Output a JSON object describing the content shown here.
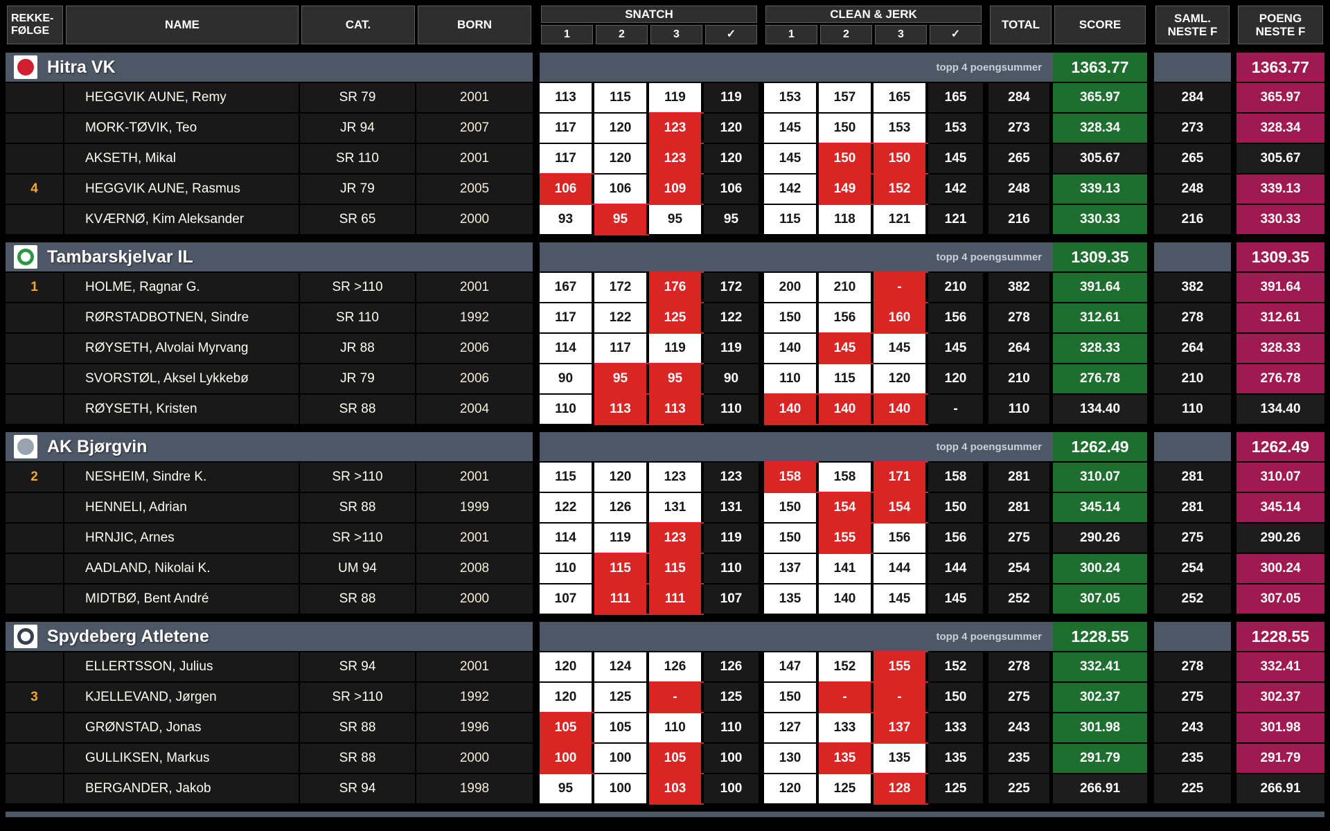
{
  "header": {
    "rekke_line1": "REKKE-",
    "rekke_line2": "FØLGE",
    "name": "NAME",
    "cat": "CAT.",
    "born": "BORN",
    "snatch": "SNATCH",
    "clean_jerk": "CLEAN & JERK",
    "attempts": [
      "1",
      "2",
      "3",
      "✓"
    ],
    "total": "TOTAL",
    "score": "SCORE",
    "saml_line1": "SAML.",
    "saml_line2": "NESTE F",
    "poeng_line1": "POENG",
    "poeng_line2": "NESTE F"
  },
  "labels": {
    "top4": "topp 4 poengsummer"
  },
  "colors": {
    "good": "#ffffff",
    "fail": "#d92523",
    "score_counted": "#1e6f2f",
    "poeng_counted": "#a01a52",
    "team_bar": "#4d5765",
    "rank": "#f4a82e"
  },
  "teams": [
    {
      "name": "Hitra VK",
      "total": "1363.77",
      "logo": {
        "type": "solid",
        "color": "#d01f2f"
      },
      "members": [
        {
          "rank": "",
          "name": "HEGGVIK AUNE, Remy",
          "cat": "SR 79",
          "born": "2001",
          "snatch": [
            {
              "v": "113",
              "ok": true
            },
            {
              "v": "115",
              "ok": true
            },
            {
              "v": "119",
              "ok": true
            }
          ],
          "snatch_best": "119",
          "cj": [
            {
              "v": "153",
              "ok": true
            },
            {
              "v": "157",
              "ok": true
            },
            {
              "v": "165",
              "ok": true
            }
          ],
          "cj_best": "165",
          "total": "284",
          "score": "365.97",
          "counted": true,
          "saml": "284",
          "poeng": "365.97"
        },
        {
          "rank": "",
          "name": "MORK-TØVIK, Teo",
          "cat": "JR 94",
          "born": "2007",
          "snatch": [
            {
              "v": "117",
              "ok": true
            },
            {
              "v": "120",
              "ok": true
            },
            {
              "v": "123",
              "ok": false
            }
          ],
          "snatch_best": "120",
          "cj": [
            {
              "v": "145",
              "ok": true
            },
            {
              "v": "150",
              "ok": true
            },
            {
              "v": "153",
              "ok": true
            }
          ],
          "cj_best": "153",
          "total": "273",
          "score": "328.34",
          "counted": true,
          "saml": "273",
          "poeng": "328.34"
        },
        {
          "rank": "",
          "name": "AKSETH, Mikal",
          "cat": "SR 110",
          "born": "2001",
          "snatch": [
            {
              "v": "117",
              "ok": true
            },
            {
              "v": "120",
              "ok": true
            },
            {
              "v": "123",
              "ok": false
            }
          ],
          "snatch_best": "120",
          "cj": [
            {
              "v": "145",
              "ok": true
            },
            {
              "v": "150",
              "ok": false
            },
            {
              "v": "150",
              "ok": false
            }
          ],
          "cj_best": "145",
          "total": "265",
          "score": "305.67",
          "counted": false,
          "saml": "265",
          "poeng": "305.67"
        },
        {
          "rank": "4",
          "name": "HEGGVIK AUNE, Rasmus",
          "cat": "JR 79",
          "born": "2005",
          "snatch": [
            {
              "v": "106",
              "ok": false
            },
            {
              "v": "106",
              "ok": true
            },
            {
              "v": "109",
              "ok": false
            }
          ],
          "snatch_best": "106",
          "cj": [
            {
              "v": "142",
              "ok": true
            },
            {
              "v": "149",
              "ok": false
            },
            {
              "v": "152",
              "ok": false
            }
          ],
          "cj_best": "142",
          "total": "248",
          "score": "339.13",
          "counted": true,
          "saml": "248",
          "poeng": "339.13"
        },
        {
          "rank": "",
          "name": "KVÆRNØ, Kim Aleksander",
          "cat": "SR 65",
          "born": "2000",
          "snatch": [
            {
              "v": "93",
              "ok": true
            },
            {
              "v": "95",
              "ok": false
            },
            {
              "v": "95",
              "ok": true
            }
          ],
          "snatch_best": "95",
          "cj": [
            {
              "v": "115",
              "ok": true
            },
            {
              "v": "118",
              "ok": true
            },
            {
              "v": "121",
              "ok": true
            }
          ],
          "cj_best": "121",
          "total": "216",
          "score": "330.33",
          "counted": true,
          "saml": "216",
          "poeng": "330.33"
        }
      ]
    },
    {
      "name": "Tambarskjelvar IL",
      "total": "1309.35",
      "logo": {
        "type": "ring",
        "color": "#2e9643"
      },
      "members": [
        {
          "rank": "1",
          "name": "HOLME, Ragnar G.",
          "cat": "SR >110",
          "born": "2001",
          "snatch": [
            {
              "v": "167",
              "ok": true
            },
            {
              "v": "172",
              "ok": true
            },
            {
              "v": "176",
              "ok": false
            }
          ],
          "snatch_best": "172",
          "cj": [
            {
              "v": "200",
              "ok": true
            },
            {
              "v": "210",
              "ok": true
            },
            {
              "v": "-",
              "ok": false
            }
          ],
          "cj_best": "210",
          "total": "382",
          "score": "391.64",
          "counted": true,
          "saml": "382",
          "poeng": "391.64"
        },
        {
          "rank": "",
          "name": "RØRSTADBOTNEN, Sindre",
          "cat": "SR 110",
          "born": "1992",
          "snatch": [
            {
              "v": "117",
              "ok": true
            },
            {
              "v": "122",
              "ok": true
            },
            {
              "v": "125",
              "ok": false
            }
          ],
          "snatch_best": "122",
          "cj": [
            {
              "v": "150",
              "ok": true
            },
            {
              "v": "156",
              "ok": true
            },
            {
              "v": "160",
              "ok": false
            }
          ],
          "cj_best": "156",
          "total": "278",
          "score": "312.61",
          "counted": true,
          "saml": "278",
          "poeng": "312.61"
        },
        {
          "rank": "",
          "name": "RØYSETH, Alvolai Myrvang",
          "cat": "JR 88",
          "born": "2006",
          "snatch": [
            {
              "v": "114",
              "ok": true
            },
            {
              "v": "117",
              "ok": true
            },
            {
              "v": "119",
              "ok": true
            }
          ],
          "snatch_best": "119",
          "cj": [
            {
              "v": "140",
              "ok": true
            },
            {
              "v": "145",
              "ok": false
            },
            {
              "v": "145",
              "ok": true
            }
          ],
          "cj_best": "145",
          "total": "264",
          "score": "328.33",
          "counted": true,
          "saml": "264",
          "poeng": "328.33"
        },
        {
          "rank": "",
          "name": "SVORSTØL, Aksel Lykkebø",
          "cat": "JR 79",
          "born": "2006",
          "snatch": [
            {
              "v": "90",
              "ok": true
            },
            {
              "v": "95",
              "ok": false
            },
            {
              "v": "95",
              "ok": false
            }
          ],
          "snatch_best": "90",
          "cj": [
            {
              "v": "110",
              "ok": true
            },
            {
              "v": "115",
              "ok": true
            },
            {
              "v": "120",
              "ok": true
            }
          ],
          "cj_best": "120",
          "total": "210",
          "score": "276.78",
          "counted": true,
          "saml": "210",
          "poeng": "276.78"
        },
        {
          "rank": "",
          "name": "RØYSETH, Kristen",
          "cat": "SR 88",
          "born": "2004",
          "snatch": [
            {
              "v": "110",
              "ok": true
            },
            {
              "v": "113",
              "ok": false
            },
            {
              "v": "113",
              "ok": false
            }
          ],
          "snatch_best": "110",
          "cj": [
            {
              "v": "140",
              "ok": false
            },
            {
              "v": "140",
              "ok": false
            },
            {
              "v": "140",
              "ok": false
            }
          ],
          "cj_best": "-",
          "total": "110",
          "score": "134.40",
          "counted": false,
          "saml": "110",
          "poeng": "134.40"
        }
      ]
    },
    {
      "name": "AK Bjørgvin",
      "total": "1262.49",
      "logo": {
        "type": "solid",
        "color": "#9aa2ad"
      },
      "members": [
        {
          "rank": "2",
          "name": "NESHEIM, Sindre K.",
          "cat": "SR >110",
          "born": "2001",
          "snatch": [
            {
              "v": "115",
              "ok": true
            },
            {
              "v": "120",
              "ok": true
            },
            {
              "v": "123",
              "ok": true
            }
          ],
          "snatch_best": "123",
          "cj": [
            {
              "v": "158",
              "ok": false
            },
            {
              "v": "158",
              "ok": true
            },
            {
              "v": "171",
              "ok": false
            }
          ],
          "cj_best": "158",
          "total": "281",
          "score": "310.07",
          "counted": true,
          "saml": "281",
          "poeng": "310.07"
        },
        {
          "rank": "",
          "name": "HENNELI, Adrian",
          "cat": "SR 88",
          "born": "1999",
          "snatch": [
            {
              "v": "122",
              "ok": true
            },
            {
              "v": "126",
              "ok": true
            },
            {
              "v": "131",
              "ok": true
            }
          ],
          "snatch_best": "131",
          "cj": [
            {
              "v": "150",
              "ok": true
            },
            {
              "v": "154",
              "ok": false
            },
            {
              "v": "154",
              "ok": false
            }
          ],
          "cj_best": "150",
          "total": "281",
          "score": "345.14",
          "counted": true,
          "saml": "281",
          "poeng": "345.14"
        },
        {
          "rank": "",
          "name": "HRNJIC, Arnes",
          "cat": "SR >110",
          "born": "2001",
          "snatch": [
            {
              "v": "114",
              "ok": true
            },
            {
              "v": "119",
              "ok": true
            },
            {
              "v": "123",
              "ok": false
            }
          ],
          "snatch_best": "119",
          "cj": [
            {
              "v": "150",
              "ok": true
            },
            {
              "v": "155",
              "ok": false
            },
            {
              "v": "156",
              "ok": true
            }
          ],
          "cj_best": "156",
          "total": "275",
          "score": "290.26",
          "counted": false,
          "saml": "275",
          "poeng": "290.26"
        },
        {
          "rank": "",
          "name": "AADLAND, Nikolai K.",
          "cat": "UM 94",
          "born": "2008",
          "snatch": [
            {
              "v": "110",
              "ok": true
            },
            {
              "v": "115",
              "ok": false
            },
            {
              "v": "115",
              "ok": false
            }
          ],
          "snatch_best": "110",
          "cj": [
            {
              "v": "137",
              "ok": true
            },
            {
              "v": "141",
              "ok": true
            },
            {
              "v": "144",
              "ok": true
            }
          ],
          "cj_best": "144",
          "total": "254",
          "score": "300.24",
          "counted": true,
          "saml": "254",
          "poeng": "300.24"
        },
        {
          "rank": "",
          "name": "MIDTBØ, Bent André",
          "cat": "SR 88",
          "born": "2000",
          "snatch": [
            {
              "v": "107",
              "ok": true
            },
            {
              "v": "111",
              "ok": false
            },
            {
              "v": "111",
              "ok": false
            }
          ],
          "snatch_best": "107",
          "cj": [
            {
              "v": "135",
              "ok": true
            },
            {
              "v": "140",
              "ok": true
            },
            {
              "v": "145",
              "ok": true
            }
          ],
          "cj_best": "145",
          "total": "252",
          "score": "307.05",
          "counted": true,
          "saml": "252",
          "poeng": "307.05"
        }
      ]
    },
    {
      "name": "Spydeberg Atletene",
      "total": "1228.55",
      "logo": {
        "type": "ring",
        "color": "#39404d"
      },
      "members": [
        {
          "rank": "",
          "name": "ELLERTSSON, Julius",
          "cat": "SR 94",
          "born": "2001",
          "snatch": [
            {
              "v": "120",
              "ok": true
            },
            {
              "v": "124",
              "ok": true
            },
            {
              "v": "126",
              "ok": true
            }
          ],
          "snatch_best": "126",
          "cj": [
            {
              "v": "147",
              "ok": true
            },
            {
              "v": "152",
              "ok": true
            },
            {
              "v": "155",
              "ok": false
            }
          ],
          "cj_best": "152",
          "total": "278",
          "score": "332.41",
          "counted": true,
          "saml": "278",
          "poeng": "332.41"
        },
        {
          "rank": "3",
          "name": "KJELLEVAND, Jørgen",
          "cat": "SR >110",
          "born": "1992",
          "snatch": [
            {
              "v": "120",
              "ok": true
            },
            {
              "v": "125",
              "ok": true
            },
            {
              "v": "-",
              "ok": false
            }
          ],
          "snatch_best": "125",
          "cj": [
            {
              "v": "150",
              "ok": true
            },
            {
              "v": "-",
              "ok": false
            },
            {
              "v": "-",
              "ok": false
            }
          ],
          "cj_best": "150",
          "total": "275",
          "score": "302.37",
          "counted": true,
          "saml": "275",
          "poeng": "302.37"
        },
        {
          "rank": "",
          "name": "GRØNSTAD, Jonas",
          "cat": "SR 88",
          "born": "1996",
          "snatch": [
            {
              "v": "105",
              "ok": false
            },
            {
              "v": "105",
              "ok": true
            },
            {
              "v": "110",
              "ok": true
            }
          ],
          "snatch_best": "110",
          "cj": [
            {
              "v": "127",
              "ok": true
            },
            {
              "v": "133",
              "ok": true
            },
            {
              "v": "137",
              "ok": false
            }
          ],
          "cj_best": "133",
          "total": "243",
          "score": "301.98",
          "counted": true,
          "saml": "243",
          "poeng": "301.98"
        },
        {
          "rank": "",
          "name": "GULLIKSEN, Markus",
          "cat": "SR 88",
          "born": "2000",
          "snatch": [
            {
              "v": "100",
              "ok": false
            },
            {
              "v": "100",
              "ok": true
            },
            {
              "v": "105",
              "ok": false
            }
          ],
          "snatch_best": "100",
          "cj": [
            {
              "v": "130",
              "ok": true
            },
            {
              "v": "135",
              "ok": false
            },
            {
              "v": "135",
              "ok": true
            }
          ],
          "cj_best": "135",
          "total": "235",
          "score": "291.79",
          "counted": true,
          "saml": "235",
          "poeng": "291.79"
        },
        {
          "rank": "",
          "name": "BERGANDER, Jakob",
          "cat": "SR 94",
          "born": "1998",
          "snatch": [
            {
              "v": "95",
              "ok": true
            },
            {
              "v": "100",
              "ok": true
            },
            {
              "v": "103",
              "ok": false
            }
          ],
          "snatch_best": "100",
          "cj": [
            {
              "v": "120",
              "ok": true
            },
            {
              "v": "125",
              "ok": true
            },
            {
              "v": "128",
              "ok": false
            }
          ],
          "cj_best": "125",
          "total": "225",
          "score": "266.91",
          "counted": false,
          "saml": "225",
          "poeng": "266.91"
        }
      ]
    }
  ]
}
